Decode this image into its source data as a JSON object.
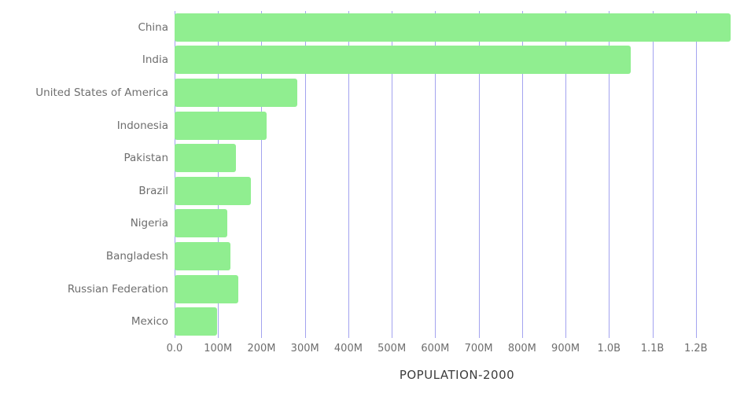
{
  "chart_data": {
    "type": "bar",
    "orientation": "horizontal",
    "title": "POPULATION-2000",
    "categories": [
      "China",
      "India",
      "United States of America",
      "Indonesia",
      "Pakistan",
      "Brazil",
      "Nigeria",
      "Bangladesh",
      "Russian Federation",
      "Mexico"
    ],
    "values": [
      1280000000,
      1050000000,
      283000000,
      211000000,
      142000000,
      175000000,
      122000000,
      128000000,
      147000000,
      98000000
    ],
    "x_ticks": [
      {
        "value": 0,
        "label": "0.0"
      },
      {
        "value": 100000000,
        "label": "100M"
      },
      {
        "value": 200000000,
        "label": "200M"
      },
      {
        "value": 300000000,
        "label": "300M"
      },
      {
        "value": 400000000,
        "label": "400M"
      },
      {
        "value": 500000000,
        "label": "500M"
      },
      {
        "value": 600000000,
        "label": "600M"
      },
      {
        "value": 700000000,
        "label": "700M"
      },
      {
        "value": 800000000,
        "label": "800M"
      },
      {
        "value": 900000000,
        "label": "900M"
      },
      {
        "value": 1000000000,
        "label": "1.0B"
      },
      {
        "value": 1100000000,
        "label": "1.1B"
      },
      {
        "value": 1200000000,
        "label": "1.2B"
      }
    ],
    "xlim": [
      0,
      1300000000
    ],
    "grid": true,
    "legend": "none",
    "bar_color": "#90ee90",
    "grid_color": "#a3a3ef",
    "label_color": "#6e6e6e",
    "title_color": "#3d3d3d"
  }
}
